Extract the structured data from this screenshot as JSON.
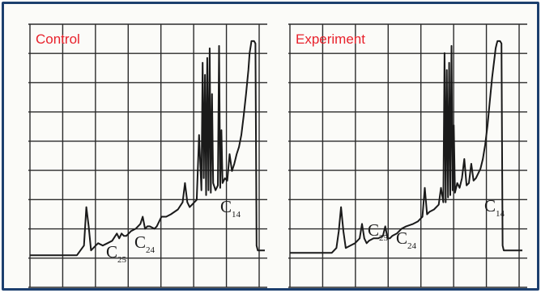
{
  "colors": {
    "frame": "#1c3f6e",
    "title": "#e8212b",
    "grid": "#2b2b2b",
    "trace": "#1a1a1a",
    "background": "#fbfbf8"
  },
  "chart_data": [
    {
      "type": "line",
      "title": "Control",
      "xlabel": "",
      "ylabel": "",
      "grid": true,
      "xlim": [
        0,
        100
      ],
      "ylim": [
        0,
        100
      ],
      "x": [
        0,
        20,
        23,
        24,
        25,
        26,
        27,
        29,
        31,
        33,
        35,
        37,
        38,
        39,
        40,
        41,
        43,
        45,
        47,
        48,
        49,
        50,
        51,
        53,
        54,
        55,
        56,
        58,
        60,
        63,
        65,
        66,
        67,
        68,
        69,
        70,
        71,
        72,
        73,
        73.5,
        74,
        74.5,
        75,
        75.5,
        76,
        76.5,
        77,
        77.5,
        78,
        79,
        80,
        80.5,
        81,
        81.5,
        82,
        83,
        84,
        85,
        86,
        87,
        88,
        89,
        90,
        91,
        92,
        93,
        93.5,
        94,
        94.3,
        94.8,
        95.4,
        96,
        96.5,
        97,
        97.5,
        98,
        100
      ],
      "values": [
        8,
        8,
        12,
        28,
        20,
        10,
        11,
        13,
        12,
        13,
        14,
        17,
        15,
        17,
        16,
        16,
        18,
        19,
        21,
        24,
        19,
        20,
        20,
        19,
        20,
        22,
        24,
        24,
        25,
        27,
        30,
        38,
        30,
        28,
        29,
        30,
        31,
        58,
        35,
        88,
        40,
        83,
        33,
        90,
        35,
        94,
        34,
        75,
        38,
        35,
        37,
        95,
        36,
        60,
        38,
        40,
        39,
        50,
        43,
        46,
        50,
        53,
        58,
        66,
        75,
        85,
        92,
        95,
        97,
        97,
        97,
        96,
        12,
        10,
        10,
        10,
        10
      ]
    },
    {
      "type": "line",
      "title": "Experiment",
      "xlabel": "",
      "ylabel": "",
      "grid": true,
      "xlim": [
        0,
        100
      ],
      "ylim": [
        0,
        100
      ],
      "x": [
        0,
        18,
        20,
        21,
        22,
        23,
        24,
        26,
        28,
        30,
        31,
        32,
        33,
        34,
        36,
        38,
        40,
        41,
        42,
        43,
        44,
        46,
        48,
        50,
        53,
        55,
        57,
        58,
        59,
        60,
        62,
        64,
        65,
        66,
        66.5,
        67,
        67.5,
        68,
        68.5,
        69,
        69.5,
        70,
        70.5,
        71,
        72,
        73,
        74,
        75,
        76,
        77,
        78,
        79,
        80,
        81,
        82,
        83,
        84,
        85,
        86,
        87,
        88,
        88.5,
        89,
        89.3,
        89.8,
        90.4,
        91,
        91.5,
        92,
        92.5,
        93,
        100
      ],
      "values": [
        9,
        9,
        11,
        18,
        28,
        18,
        11,
        12,
        13,
        15,
        21,
        15,
        13,
        14,
        15,
        15,
        16,
        20,
        15,
        15,
        16,
        17,
        19,
        20,
        21,
        22,
        24,
        36,
        25,
        26,
        27,
        29,
        36,
        30,
        92,
        30,
        85,
        32,
        88,
        33,
        95,
        35,
        62,
        34,
        38,
        36,
        40,
        48,
        37,
        38,
        46,
        39,
        40,
        42,
        44,
        48,
        54,
        62,
        72,
        82,
        90,
        94,
        96,
        97,
        97,
        97,
        96,
        12,
        10,
        10,
        10,
        10
      ]
    }
  ],
  "panels": [
    {
      "title": "Control",
      "labels": [
        {
          "main": "C",
          "sub": "25"
        },
        {
          "main": "C",
          "sub": "24"
        },
        {
          "main": "C",
          "sub": "14"
        }
      ]
    },
    {
      "title": "Experiment",
      "labels": [
        {
          "main": "C",
          "sub": "25"
        },
        {
          "main": "C",
          "sub": "24"
        },
        {
          "main": "C",
          "sub": "14"
        }
      ]
    }
  ]
}
